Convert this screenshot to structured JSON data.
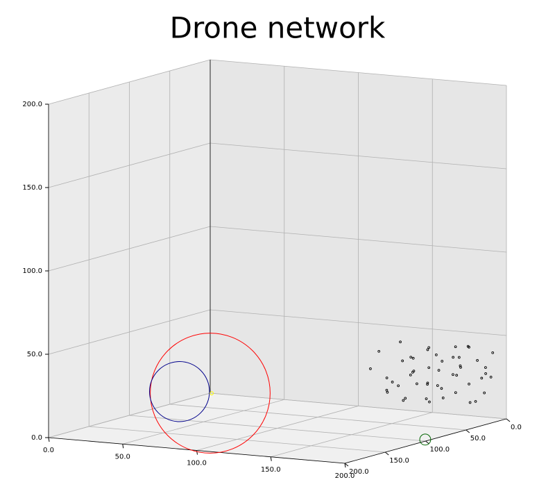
{
  "chart_data": {
    "type": "scatter3d",
    "title": "Drone network",
    "xlim": [
      0,
      200
    ],
    "ylim": [
      0,
      200
    ],
    "zlim": [
      0,
      200
    ],
    "xticks": [
      {
        "value": 0,
        "label": "0.0"
      },
      {
        "value": 50,
        "label": "50.0"
      },
      {
        "value": 100,
        "label": "100.0"
      },
      {
        "value": 150,
        "label": "150.0"
      },
      {
        "value": 200,
        "label": "200.0"
      }
    ],
    "yticks": [
      {
        "value": 0,
        "label": "0.0"
      },
      {
        "value": 50,
        "label": "50.0"
      },
      {
        "value": 100,
        "label": "100.0"
      },
      {
        "value": 150,
        "label": "150.0"
      },
      {
        "value": 200,
        "label": "200.0"
      }
    ],
    "zticks": [
      {
        "value": 0,
        "label": "0.0"
      },
      {
        "value": 50,
        "label": "50.0"
      },
      {
        "value": 100,
        "label": "100.0"
      },
      {
        "value": 150,
        "label": "150.0"
      },
      {
        "value": 200,
        "label": "200.0"
      }
    ],
    "grid": true,
    "series": [
      {
        "color": "#000000",
        "x": [
          130,
          133,
          136,
          140,
          142,
          145,
          148,
          150,
          152,
          155,
          157,
          160,
          162,
          164,
          166,
          168,
          170,
          172,
          174,
          176,
          178,
          180,
          182,
          184,
          186,
          188,
          190,
          192,
          194,
          135,
          138,
          144,
          147,
          151,
          154,
          158,
          161,
          165,
          169,
          173,
          177,
          181,
          185,
          189,
          193,
          141,
          156,
          171,
          183,
          195
        ],
        "y": [
          40,
          35,
          30,
          38,
          25,
          33,
          20,
          36,
          28,
          15,
          32,
          22,
          10,
          30,
          18,
          25,
          8,
          27,
          14,
          22,
          6,
          20,
          12,
          17,
          5,
          14,
          9,
          11,
          6,
          22,
          15,
          12,
          28,
          8,
          34,
          19,
          26,
          35,
          30,
          9,
          24,
          28,
          20,
          18,
          13,
          40,
          38,
          32,
          26,
          10
        ],
        "z": [
          30,
          40,
          15,
          25,
          45,
          20,
          35,
          12,
          28,
          40,
          22,
          10,
          33,
          44,
          18,
          30,
          42,
          14,
          26,
          38,
          20,
          32,
          10,
          44,
          24,
          36,
          16,
          28,
          40,
          20,
          32,
          26,
          12,
          18,
          38,
          30,
          22,
          14,
          40,
          36,
          28,
          18,
          45,
          12,
          32,
          18,
          28,
          22,
          34,
          26
        ]
      }
    ],
    "circles": [
      {
        "color": "#ff0000",
        "x": 0,
        "y": 0,
        "z": 0,
        "r": 36
      },
      {
        "color": "#00008b",
        "x": 0,
        "y": 38,
        "z": 6,
        "r": 18
      },
      {
        "color": "#ffff00",
        "x": 1,
        "y": 0,
        "z": 0,
        "r": 1
      },
      {
        "color": "#006400",
        "x": 197,
        "y": 95,
        "z": 0,
        "r": 3.3
      }
    ]
  }
}
